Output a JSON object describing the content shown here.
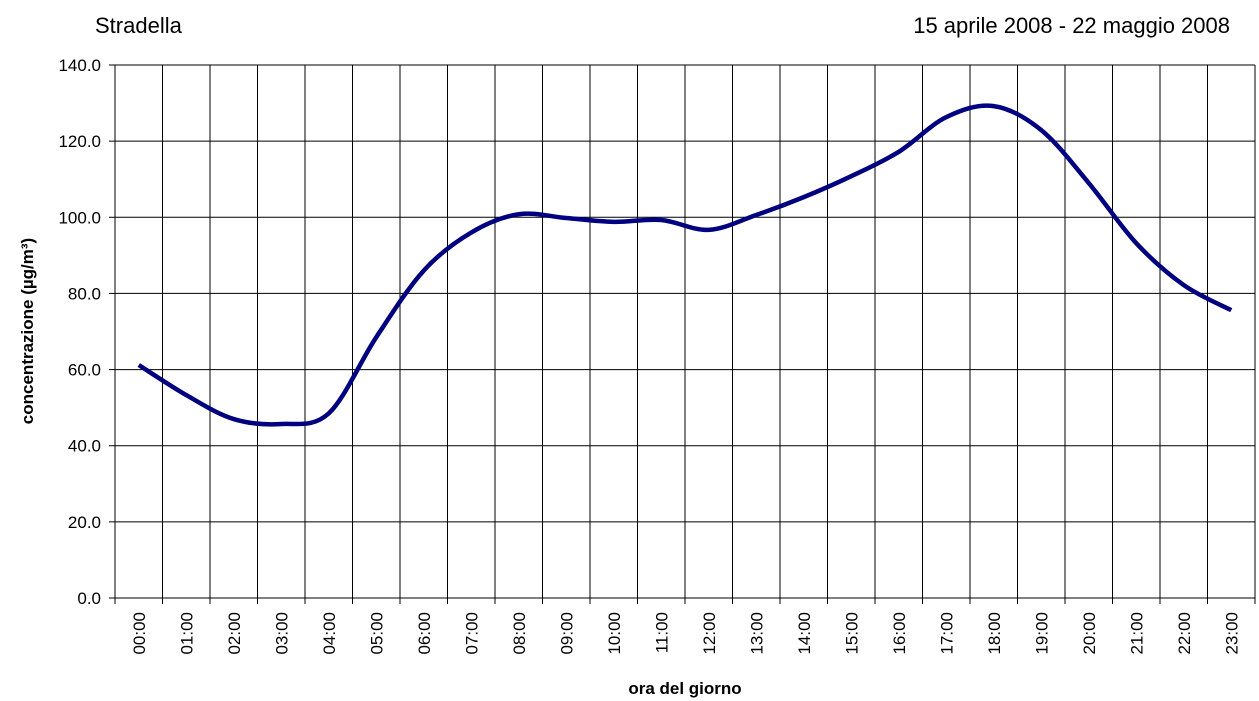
{
  "chart_data": {
    "type": "line",
    "title": "Stradella",
    "subtitle": "15 aprile 2008 - 22 maggio 2008",
    "x_label": "ora del giorno",
    "y_label": "concentrazione (µg/m³)",
    "categories": [
      "00:00",
      "01:00",
      "02:00",
      "03:00",
      "04:00",
      "05:00",
      "06:00",
      "07:00",
      "08:00",
      "09:00",
      "10:00",
      "11:00",
      "12:00",
      "13:00",
      "14:00",
      "15:00",
      "16:00",
      "17:00",
      "18:00",
      "19:00",
      "20:00",
      "21:00",
      "22:00",
      "23:00"
    ],
    "series": [
      {
        "color": "#000080",
        "values": [
          61.2,
          53.3,
          47.0,
          45.7,
          48.5,
          68.5,
          86.0,
          96.0,
          100.8,
          99.8,
          98.8,
          99.3,
          96.7,
          100.6,
          105.3,
          110.8,
          117.2,
          126.3,
          129.2,
          122.9,
          109.0,
          93.2,
          82.2,
          75.6
        ]
      }
    ],
    "ylim": [
      0,
      140
    ],
    "yticks": [
      {
        "value": 0,
        "label": "0.0"
      },
      {
        "value": 20,
        "label": "20.0"
      },
      {
        "value": 40,
        "label": "40.0"
      },
      {
        "value": 60,
        "label": "60.0"
      },
      {
        "value": 80,
        "label": "80.0"
      },
      {
        "value": 100,
        "label": "100.0"
      },
      {
        "value": 120,
        "label": "120.0"
      },
      {
        "value": 140,
        "label": "140.0"
      }
    ],
    "grid": true
  }
}
